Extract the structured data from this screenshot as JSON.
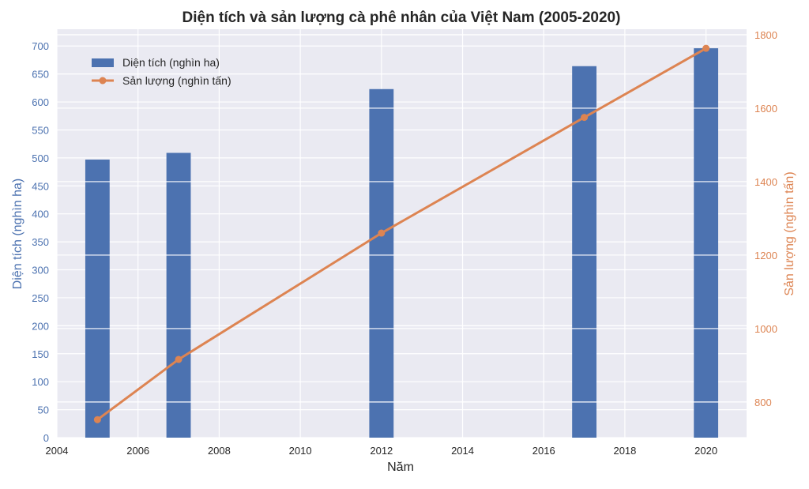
{
  "chart_data": {
    "type": "bar+line",
    "title": "Diện tích và sản lượng cà phê nhân của Việt Nam (2005-2020)",
    "xlabel": "Năm",
    "ylabel_left": "Diện tích (nghìn ha)",
    "ylabel_right": "Sản lượng (nghìn tấn)",
    "xlim": [
      2004,
      2021
    ],
    "ylim_left": [
      0,
      730
    ],
    "ylim_right": [
      703,
      1815
    ],
    "x_ticks": [
      2004,
      2006,
      2008,
      2010,
      2012,
      2014,
      2016,
      2018,
      2020
    ],
    "x_tick_labels": [
      "2004",
      "2006",
      "2008",
      "2010",
      "2012",
      "2014",
      "2016",
      "2018",
      "2020"
    ],
    "y_left_ticks": [
      0,
      50,
      100,
      150,
      200,
      250,
      300,
      350,
      400,
      450,
      500,
      550,
      600,
      650,
      700
    ],
    "y_left_tick_labels": [
      "0",
      "50",
      "100",
      "150",
      "200",
      "250",
      "300",
      "350",
      "400",
      "450",
      "500",
      "550",
      "600",
      "650",
      "700"
    ],
    "y_right_ticks": [
      800,
      1000,
      1200,
      1400,
      1600,
      1800
    ],
    "y_right_tick_labels": [
      "800",
      "1000",
      "1200",
      "1400",
      "1600",
      "1800"
    ],
    "years": [
      2005,
      2007,
      2012,
      2017,
      2020
    ],
    "series": [
      {
        "name": "Diện tích (nghìn ha)",
        "type": "bar",
        "axis": "left",
        "color": "#4c72b0",
        "values": [
          497,
          509,
          623,
          664,
          696
        ]
      },
      {
        "name": "Sản lượng (nghìn tấn)",
        "type": "line",
        "axis": "right",
        "color": "#dd8452",
        "values": [
          752,
          916,
          1260,
          1575,
          1763
        ]
      }
    ],
    "legend_position": "top-left",
    "grid": true
  },
  "colors": {
    "plot_bg": "#eaeaf2",
    "grid": "#ffffff",
    "left_axis": "#4c72b0",
    "right_axis": "#dd8452",
    "text": "#262626"
  }
}
